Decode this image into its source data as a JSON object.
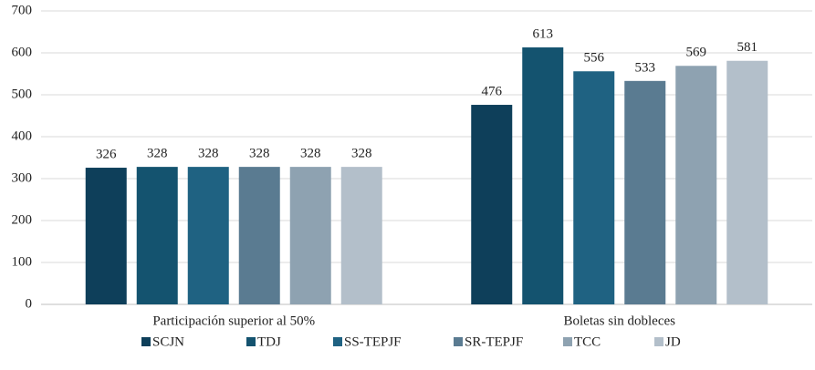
{
  "chart_data": {
    "type": "bar",
    "categories": [
      "Participación superior al 50%",
      "Boletas sin dobleces"
    ],
    "series": [
      {
        "name": "SCJN",
        "color": "#0e3f5a",
        "values": [
          326,
          476
        ]
      },
      {
        "name": "TDJ",
        "color": "#14536f",
        "values": [
          328,
          613
        ]
      },
      {
        "name": "SS-TEPJF",
        "color": "#1f6282",
        "values": [
          328,
          556
        ]
      },
      {
        "name": "SR-TEPJF",
        "color": "#5a7b91",
        "values": [
          328,
          533
        ]
      },
      {
        "name": "TCC",
        "color": "#8ea2b1",
        "values": [
          328,
          569
        ]
      },
      {
        "name": "JD",
        "color": "#b3bfca",
        "values": [
          328,
          581
        ]
      }
    ],
    "ylim": [
      0,
      700
    ],
    "yticks": [
      0,
      100,
      200,
      300,
      400,
      500,
      600,
      700
    ],
    "grid": true,
    "legend": "bottom"
  }
}
